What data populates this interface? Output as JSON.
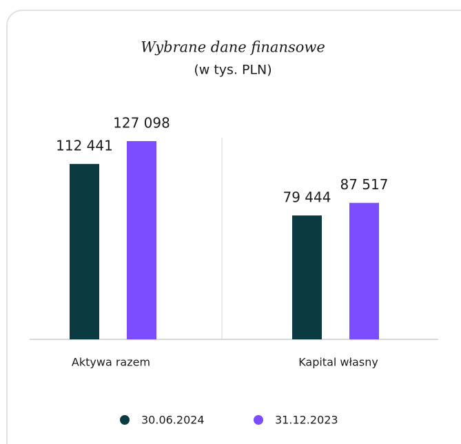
{
  "chart_data": {
    "type": "bar",
    "title": "Wybrane dane finansowe",
    "subtitle": "(w tys. PLN)",
    "categories": [
      "Aktywa razem",
      "Kapital własny"
    ],
    "series": [
      {
        "name": "30.06.2024",
        "color": "#0b3a40",
        "values": [
          112441,
          79444
        ],
        "value_labels": [
          "112 441",
          "79 444"
        ]
      },
      {
        "name": "31.12.2023",
        "color": "#7b4dff",
        "values": [
          127098,
          87517
        ],
        "value_labels": [
          "127 098",
          "87 517"
        ]
      }
    ]
  }
}
